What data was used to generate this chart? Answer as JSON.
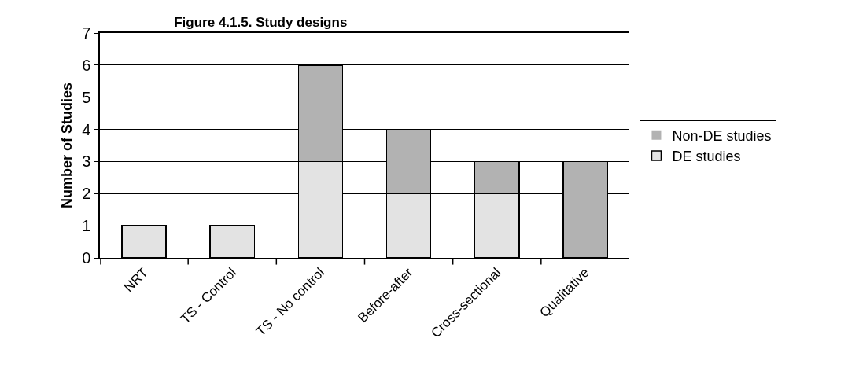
{
  "chart_data": {
    "type": "bar",
    "title": "Figure 4.1.5. Study designs",
    "ylabel": "Number of Studies",
    "categories": [
      "NRT",
      "TS - Control",
      "TS - No control",
      "Before-after",
      "Cross-sectional",
      "Qualitative"
    ],
    "series": [
      {
        "name": "DE studies",
        "color": "#e3e3e3",
        "values": [
          1,
          1,
          3,
          2,
          2,
          0
        ]
      },
      {
        "name": "Non-DE studies",
        "color": "#b2b2b2",
        "values": [
          0,
          0,
          3,
          2,
          1,
          3
        ]
      }
    ],
    "stacked": true,
    "ylim": [
      0,
      7
    ],
    "yticks": [
      0,
      1,
      2,
      3,
      4,
      5,
      6,
      7
    ],
    "grid": "y",
    "legend": "right"
  }
}
